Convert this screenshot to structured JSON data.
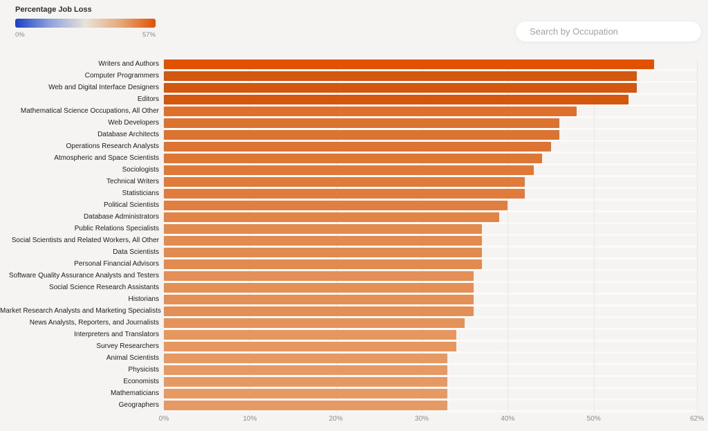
{
  "page": {
    "background": "#f5f4f3"
  },
  "legend": {
    "title": "Percentage Job Loss",
    "min_label": "0%",
    "max_label": "57%",
    "gradient_stops": [
      "#1c40c4",
      "#8fa3dc",
      "#e8e3da",
      "#e5a979",
      "#e05206"
    ]
  },
  "search": {
    "placeholder": "Search by Occupation"
  },
  "chart_data": {
    "type": "bar",
    "orientation": "horizontal",
    "title": "Percentage Job Loss",
    "xlabel": "",
    "ylabel": "",
    "xlim": [
      0,
      62
    ],
    "x_tick_values": [
      0,
      10,
      20,
      30,
      40,
      50,
      62
    ],
    "x_tick_labels": [
      "0%",
      "10%",
      "20%",
      "30%",
      "40%",
      "50%",
      "62%"
    ],
    "grid": "vertical",
    "legend_position": "top-left",
    "categories": [
      "Writers and Authors",
      "Computer Programmers",
      "Web and Digital Interface Designers",
      "Editors",
      "Mathematical Science Occupations, All Other",
      "Web Developers",
      "Database Architects",
      "Operations Research Analysts",
      "Atmospheric and Space Scientists",
      "Sociologists",
      "Technical Writers",
      "Statisticians",
      "Political Scientists",
      "Database Administrators",
      "Public Relations Specialists",
      "Social Scientists and Related Workers, All Other",
      "Data Scientists",
      "Personal Financial Advisors",
      "Software Quality Assurance Analysts and Testers",
      "Social Science Research Assistants",
      "Historians",
      "Market Research Analysts and Marketing Specialists",
      "News Analysts, Reporters, and Journalists",
      "Interpreters and Translators",
      "Survey Researchers",
      "Animal Scientists",
      "Physicists",
      "Economists",
      "Mathematicians",
      "Geographers"
    ],
    "values": [
      57,
      55,
      55,
      54,
      48,
      46,
      46,
      45,
      44,
      43,
      42,
      42,
      40,
      39,
      37,
      37,
      37,
      37,
      36,
      36,
      36,
      36,
      35,
      34,
      34,
      33,
      33,
      33,
      33,
      33
    ],
    "color_scale": {
      "domain": [
        0,
        57
      ],
      "value_stops": [
        {
          "v": 33,
          "c": "#e79963"
        },
        {
          "v": 37,
          "c": "#e28b51"
        },
        {
          "v": 40,
          "c": "#e08040"
        },
        {
          "v": 45,
          "c": "#dd7433"
        },
        {
          "v": 48,
          "c": "#de702c"
        },
        {
          "v": 54,
          "c": "#d4570e"
        },
        {
          "v": 56,
          "c": "#d2560e"
        },
        {
          "v": 57,
          "c": "#e25100"
        }
      ]
    }
  }
}
